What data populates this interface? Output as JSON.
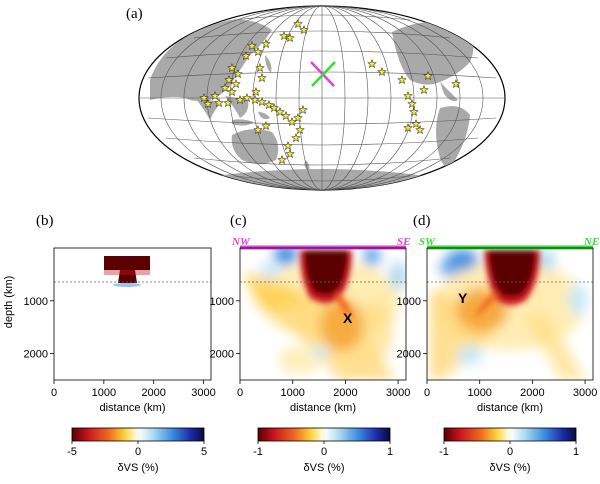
{
  "figure": {
    "panel_labels": [
      "(a)",
      "(b)",
      "(c)",
      "(d)"
    ],
    "profile_endpoints": {
      "c": {
        "start": "NW",
        "end": "SE",
        "color": "#e040e0"
      },
      "d": {
        "start": "SW",
        "end": "NE",
        "color": "#33dd33"
      }
    },
    "annotations": {
      "c": "X",
      "d": "Y"
    }
  },
  "chart_data": [
    {
      "type": "map",
      "panel": "(a)",
      "projection": "global equal-area (Hammer-like)",
      "markers": "yellow stars (event locations)",
      "profile_lines": [
        "#e040e0",
        "#33dd33"
      ]
    },
    {
      "type": "heatmap",
      "panel": "(b)",
      "xlabel": "distance (km)",
      "ylabel": "depth (km)",
      "x_ticks": [
        0,
        1000,
        2000,
        3000
      ],
      "y_ticks": [
        1000,
        2000
      ],
      "xlim": [
        0,
        3150
      ],
      "ylim": [
        2500,
        0
      ],
      "colorbar": {
        "label": "δVS (%)",
        "ticks": [
          -5,
          0,
          5
        ],
        "range": [
          -5,
          5
        ]
      }
    },
    {
      "type": "heatmap",
      "panel": "(c)",
      "xlabel": "distance (km)",
      "x_ticks": [
        0,
        1000,
        2000,
        3000
      ],
      "y_ticks": [
        1000,
        2000
      ],
      "xlim": [
        0,
        3150
      ],
      "ylim": [
        2500,
        0
      ],
      "colorbar": {
        "label": "δVS (%)",
        "ticks": [
          -1,
          0,
          1
        ],
        "range": [
          -1,
          1
        ]
      }
    },
    {
      "type": "heatmap",
      "panel": "(d)",
      "xlabel": "distance (km)",
      "x_ticks": [
        0,
        1000,
        2000,
        3000
      ],
      "y_ticks": [
        1000,
        2000
      ],
      "xlim": [
        0,
        3150
      ],
      "ylim": [
        2500,
        0
      ],
      "colorbar": {
        "label": "δVS (%)",
        "ticks": [
          -1,
          0,
          1
        ],
        "range": [
          -1,
          1
        ]
      }
    }
  ]
}
